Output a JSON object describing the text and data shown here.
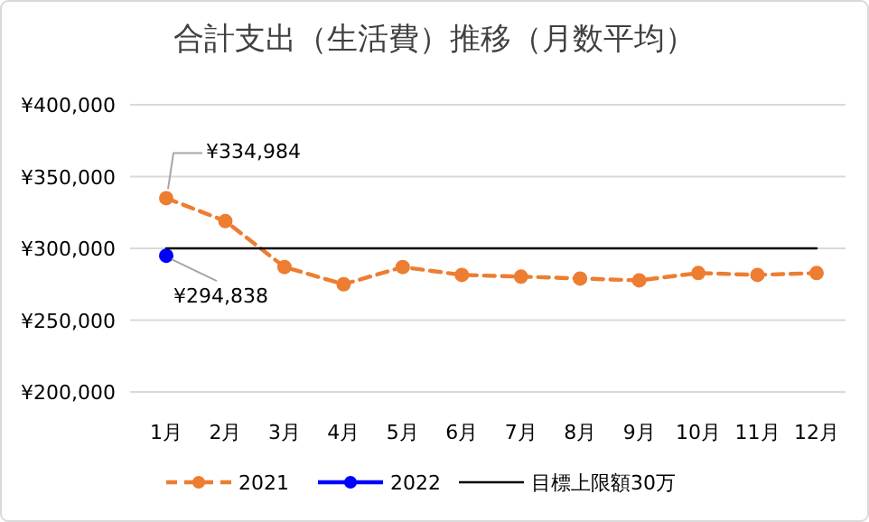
{
  "chart_data": {
    "type": "line",
    "title": "合計支出（生活費）推移（月数平均）",
    "categories": [
      "1月",
      "2月",
      "3月",
      "4月",
      "5月",
      "6月",
      "7月",
      "8月",
      "9月",
      "10月",
      "11月",
      "12月"
    ],
    "series": [
      {
        "name": "2021",
        "color": "#ed7d31",
        "line_style": "dashed",
        "marker": "circle",
        "values": [
          334984,
          319000,
          287000,
          275000,
          287000,
          281500,
          280300,
          279000,
          277700,
          282800,
          281500,
          282800
        ],
        "value_labels": [
          "¥334,984",
          null,
          null,
          null,
          null,
          null,
          null,
          null,
          null,
          null,
          null,
          null
        ]
      },
      {
        "name": "2022",
        "color": "#0000ff",
        "line_style": "solid",
        "marker": "circle",
        "values": [
          294838,
          null,
          null,
          null,
          null,
          null,
          null,
          null,
          null,
          null,
          null,
          null
        ],
        "value_labels": [
          "¥294,838",
          null,
          null,
          null,
          null,
          null,
          null,
          null,
          null,
          null,
          null,
          null
        ]
      },
      {
        "name": "目標上限額30万",
        "color": "#000000",
        "line_style": "solid",
        "marker": "none",
        "values": [
          300000,
          300000,
          300000,
          300000,
          300000,
          300000,
          300000,
          300000,
          300000,
          300000,
          300000,
          300000
        ]
      }
    ],
    "ylim": [
      200000,
      400000
    ],
    "yticks": [
      {
        "value": 200000,
        "label": "¥200,000"
      },
      {
        "value": 250000,
        "label": "¥250,000"
      },
      {
        "value": 300000,
        "label": "¥300,000"
      },
      {
        "value": 350000,
        "label": "¥350,000"
      },
      {
        "value": 400000,
        "label": "¥400,000"
      }
    ],
    "grid": "y",
    "legend": "bottom"
  }
}
